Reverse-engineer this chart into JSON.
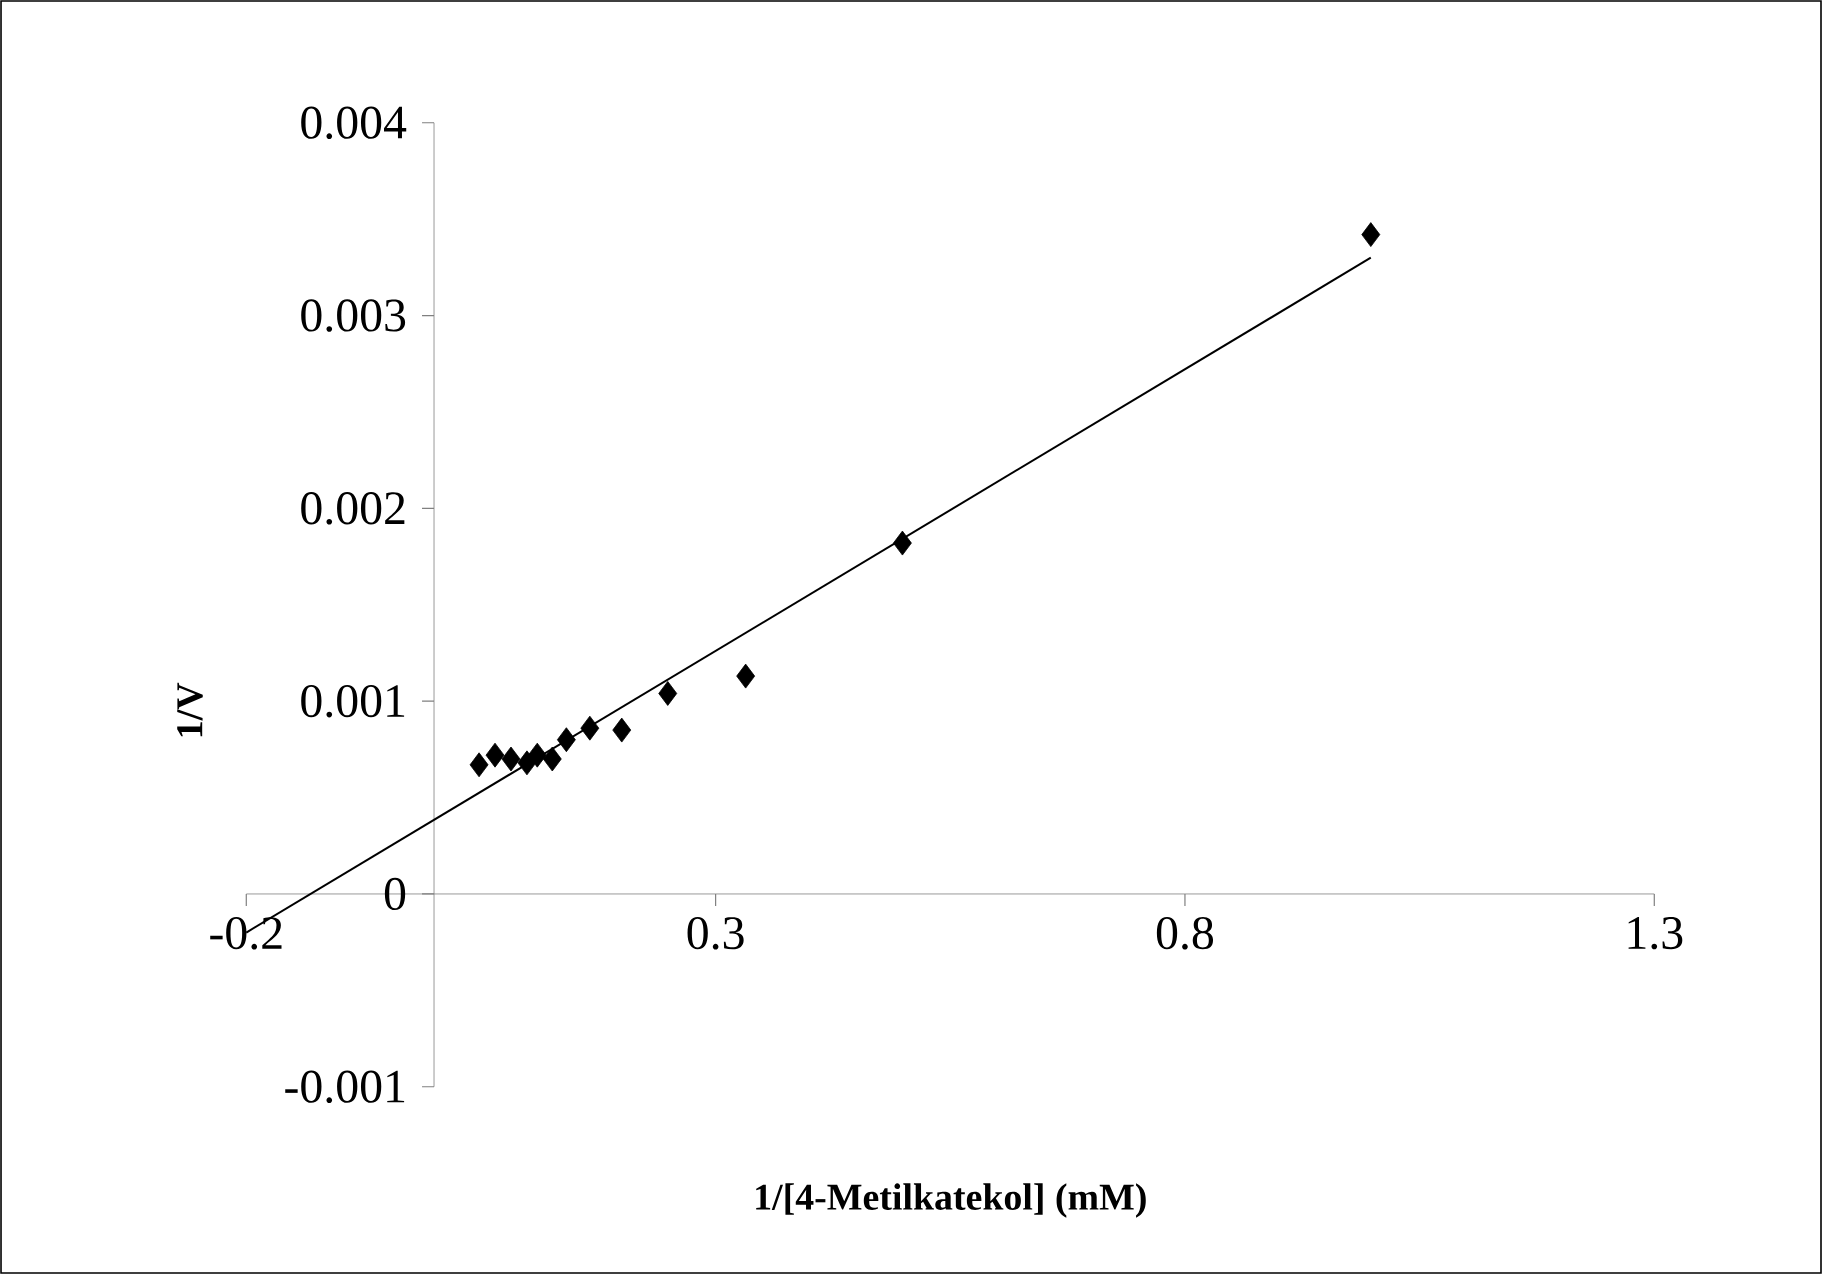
{
  "chart_data": {
    "type": "scatter",
    "xlabel": "1/[4-Metilkatekol] (mM)",
    "ylabel": "1/V",
    "xlim": [
      -0.2,
      1.3
    ],
    "ylim": [
      -0.001,
      0.004
    ],
    "xticks": [
      -0.2,
      0.3,
      0.8,
      1.3
    ],
    "yticks": [
      -0.001,
      0,
      0.001,
      0.002,
      0.003,
      0.004
    ],
    "grid": false,
    "series": [
      {
        "marker": "diamond",
        "color": "#000000",
        "x": [
          0.048,
          0.065,
          0.082,
          0.099,
          0.11,
          0.126,
          0.141,
          0.166,
          0.2,
          0.249,
          0.332,
          0.499,
          0.998
        ],
        "values": [
          0.00067,
          0.00072,
          0.0007,
          0.00068,
          0.00072,
          0.0007,
          0.0008,
          0.00086,
          0.00085,
          0.00104,
          0.00113,
          0.00182,
          0.00342
        ]
      },
      {
        "type": "line",
        "marker": "none",
        "color": "#000000",
        "x": [
          -0.2,
          0.998
        ],
        "values": [
          -0.0002,
          0.0033
        ]
      }
    ]
  }
}
